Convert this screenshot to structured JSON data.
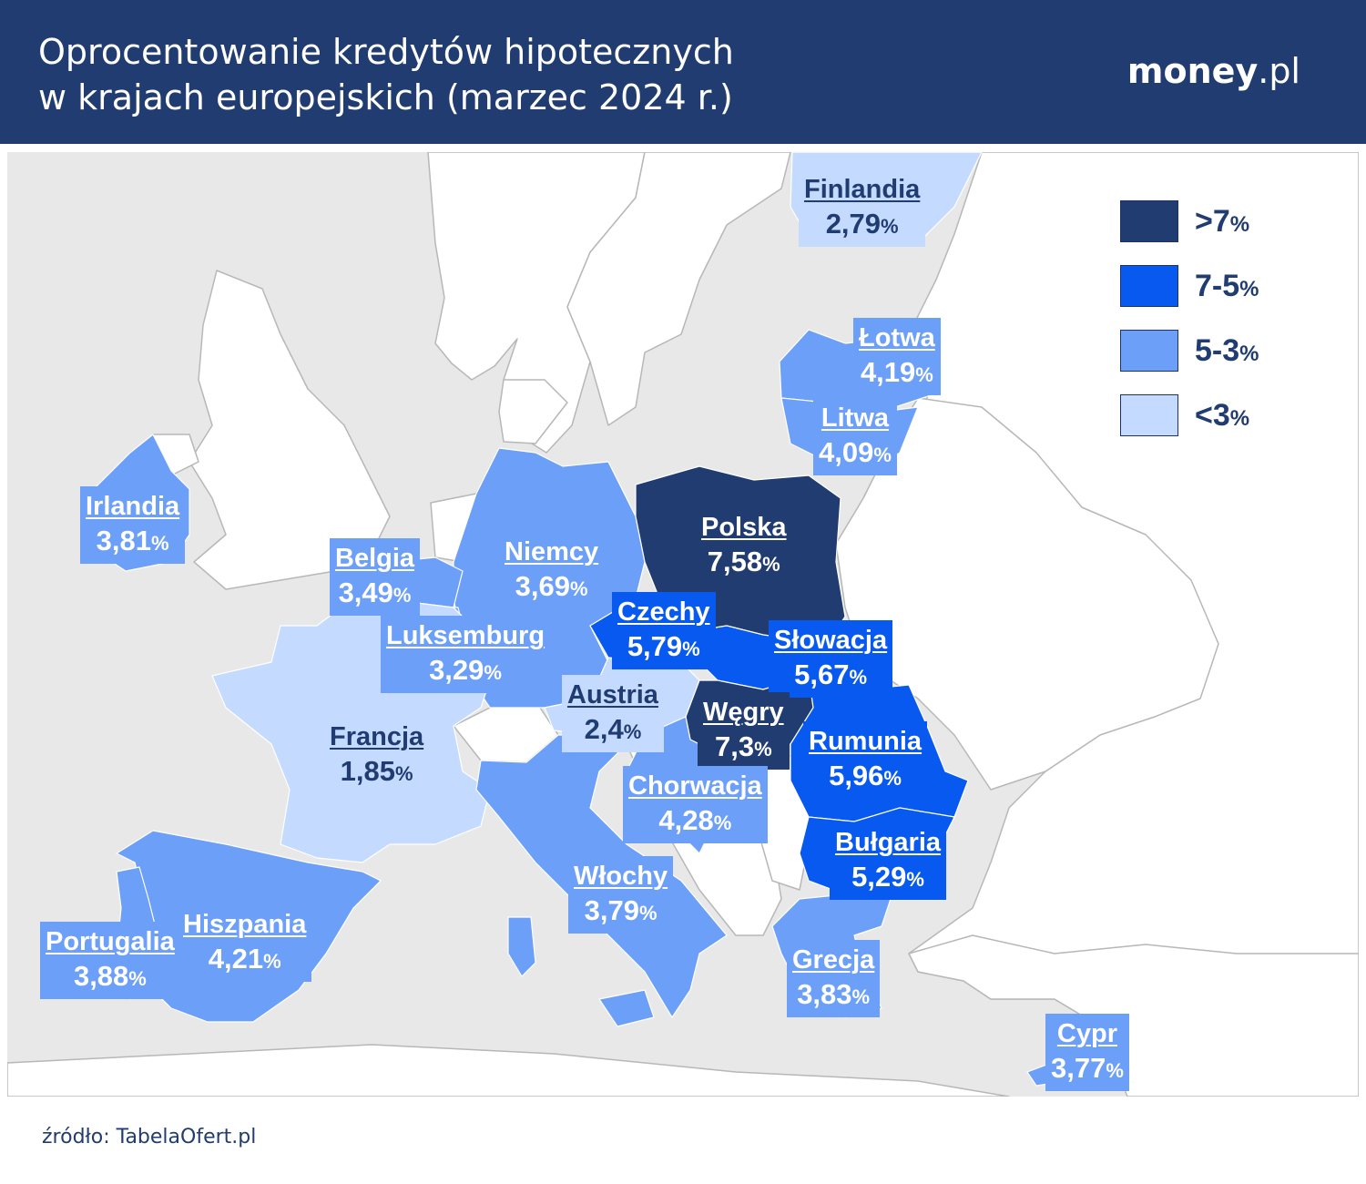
{
  "header": {
    "title_line1": "Oprocentowanie kredytów hipotecznych",
    "title_line2": "w krajach europejskich (marzec 2024 r.)",
    "logo_brand": "money",
    "logo_tld": ".pl"
  },
  "colors": {
    "header_bg": "#203c71",
    "text_navy": "#203c71",
    "sea": "#e8e8e8",
    "land_other": "#ffffff",
    "border": "#b7b7b7",
    "class_gt7": "#203c71",
    "class_7_5": "#0759f0",
    "class_5_3": "#6c9ff8",
    "class_lt3": "#c4dbff"
  },
  "legend": [
    {
      "label": ">7",
      "unit": "%",
      "color_key": "class_gt7"
    },
    {
      "label": "7-5",
      "unit": "%",
      "color_key": "class_7_5"
    },
    {
      "label": "5-3",
      "unit": "%",
      "color_key": "class_5_3"
    },
    {
      "label": "<3",
      "unit": "%",
      "color_key": "class_lt3"
    }
  ],
  "countries": [
    {
      "name": "Finlandia",
      "rate": "2,79",
      "unit": "%",
      "class": "class_lt3"
    },
    {
      "name": "Łotwa",
      "rate": "4,19",
      "unit": "%",
      "class": "class_5_3"
    },
    {
      "name": "Litwa",
      "rate": "4,09",
      "unit": "%",
      "class": "class_5_3"
    },
    {
      "name": "Irlandia",
      "rate": "3,81",
      "unit": "%",
      "class": "class_5_3"
    },
    {
      "name": "Belgia",
      "rate": "3,49",
      "unit": "%",
      "class": "class_5_3"
    },
    {
      "name": "Niemcy",
      "rate": "3,69",
      "unit": "%",
      "class": "class_5_3"
    },
    {
      "name": "Polska",
      "rate": "7,58",
      "unit": "%",
      "class": "class_gt7"
    },
    {
      "name": "Czechy",
      "rate": "5,79",
      "unit": "%",
      "class": "class_7_5"
    },
    {
      "name": "Słowacja",
      "rate": "5,67",
      "unit": "%",
      "class": "class_7_5"
    },
    {
      "name": "Luksemburg",
      "rate": "3,29",
      "unit": "%",
      "class": "class_5_3"
    },
    {
      "name": "Austria",
      "rate": "2,4",
      "unit": "%",
      "class": "class_lt3"
    },
    {
      "name": "Węgry",
      "rate": "7,3",
      "unit": "%",
      "class": "class_gt7"
    },
    {
      "name": "Francja",
      "rate": "1,85",
      "unit": "%",
      "class": "class_lt3"
    },
    {
      "name": "Rumunia",
      "rate": "5,96",
      "unit": "%",
      "class": "class_7_5"
    },
    {
      "name": "Chorwacja",
      "rate": "4,28",
      "unit": "%",
      "class": "class_5_3"
    },
    {
      "name": "Bułgaria",
      "rate": "5,29",
      "unit": "%",
      "class": "class_7_5"
    },
    {
      "name": "Włochy",
      "rate": "3,79",
      "unit": "%",
      "class": "class_5_3"
    },
    {
      "name": "Hiszpania",
      "rate": "4,21",
      "unit": "%",
      "class": "class_5_3"
    },
    {
      "name": "Portugalia",
      "rate": "3,88",
      "unit": "%",
      "class": "class_5_3"
    },
    {
      "name": "Grecja",
      "rate": "3,83",
      "unit": "%",
      "class": "class_5_3"
    },
    {
      "name": "Cypr",
      "rate": "3,77",
      "unit": "%",
      "class": "class_5_3"
    }
  ],
  "source": "źródło: TabelaOfert.pl"
}
